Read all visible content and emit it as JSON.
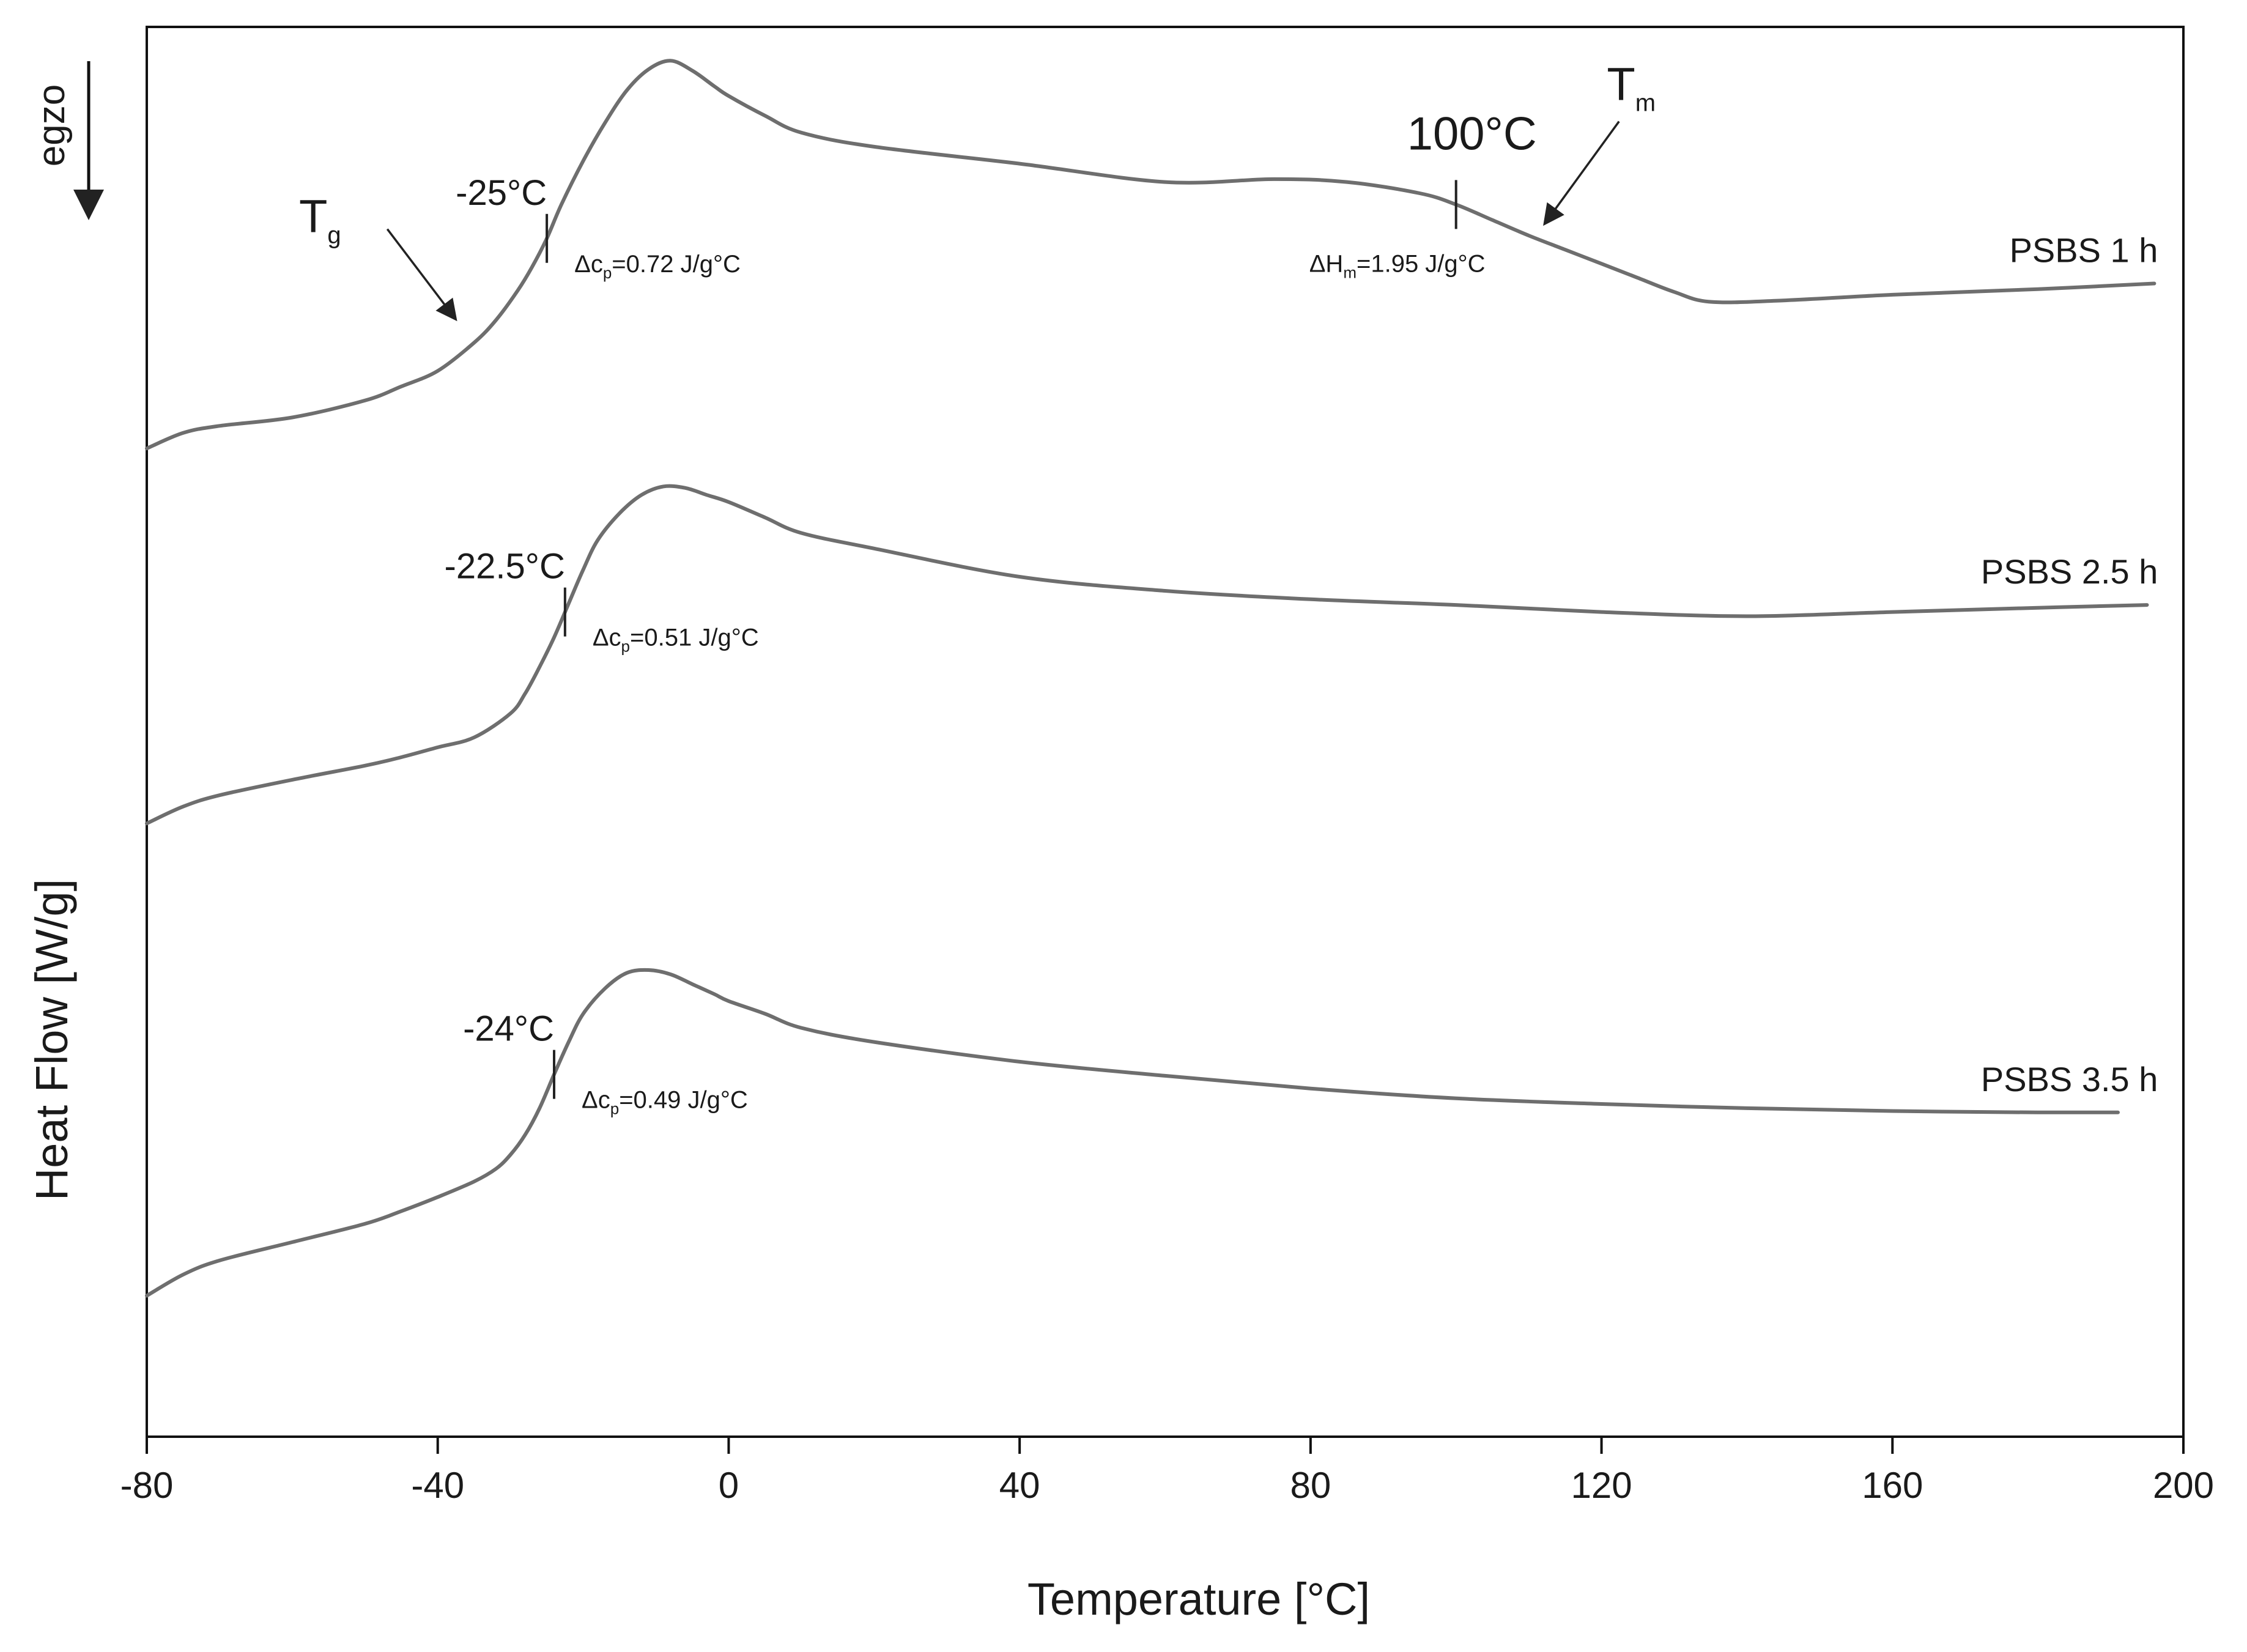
{
  "chart_data": {
    "type": "line",
    "title": "",
    "xlabel": "Temperature [°C]",
    "ylabel": "Heat Flow [W/g]",
    "direction_label": "egzo",
    "xlim": [
      -80,
      200
    ],
    "xticks": [
      "-80",
      "-40",
      "0",
      "40",
      "80",
      "120",
      "160",
      "200"
    ],
    "grid": false,
    "y_units": "relative heat flow (0 = bottom of frame, 1 = top of frame)",
    "series": [
      {
        "name": "PSBS 1 h",
        "x": [
          -80,
          -75,
          -70,
          -60,
          -50,
          -45,
          -40,
          -35,
          -32,
          -29,
          -27,
          -25,
          -23,
          -20,
          -17,
          -14,
          -11,
          -8,
          -5,
          -2,
          0,
          5,
          10,
          20,
          40,
          60,
          75,
          85,
          95,
          100,
          105,
          110,
          115,
          120,
          125,
          130,
          135,
          145,
          160,
          180,
          196
        ],
        "y": [
          0.701,
          0.712,
          0.717,
          0.723,
          0.735,
          0.745,
          0.756,
          0.776,
          0.792,
          0.813,
          0.83,
          0.85,
          0.874,
          0.905,
          0.932,
          0.955,
          0.97,
          0.976,
          0.969,
          0.958,
          0.951,
          0.937,
          0.925,
          0.915,
          0.903,
          0.89,
          0.892,
          0.89,
          0.882,
          0.874,
          0.863,
          0.852,
          0.842,
          0.832,
          0.822,
          0.812,
          0.805,
          0.806,
          0.81,
          0.814,
          0.818
        ]
      },
      {
        "name": "PSBS 2.5 h",
        "x": [
          -80,
          -75,
          -70,
          -60,
          -50,
          -45,
          -40,
          -35,
          -30,
          -28,
          -26,
          -24,
          -22,
          -20,
          -18,
          -15,
          -12,
          -9,
          -6,
          -3,
          0,
          5,
          10,
          20,
          40,
          60,
          80,
          100,
          120,
          140,
          160,
          180,
          195
        ],
        "y": [
          0.435,
          0.447,
          0.455,
          0.466,
          0.476,
          0.482,
          0.489,
          0.496,
          0.513,
          0.527,
          0.546,
          0.567,
          0.591,
          0.615,
          0.636,
          0.655,
          0.668,
          0.674,
          0.673,
          0.668,
          0.663,
          0.652,
          0.641,
          0.63,
          0.61,
          0.6,
          0.594,
          0.59,
          0.585,
          0.582,
          0.585,
          0.588,
          0.59
        ]
      },
      {
        "name": "PSBS 3.5 h",
        "x": [
          -80,
          -75,
          -70,
          -60,
          -50,
          -45,
          -40,
          -35,
          -32,
          -30,
          -28,
          -26,
          -24,
          -22,
          -20,
          -17,
          -14,
          -11,
          -8,
          -5,
          -2,
          0,
          5,
          10,
          20,
          40,
          60,
          80,
          100,
          120,
          140,
          160,
          180,
          191
        ],
        "y": [
          0.1,
          0.115,
          0.125,
          0.138,
          0.151,
          0.16,
          0.17,
          0.181,
          0.19,
          0.2,
          0.214,
          0.233,
          0.257,
          0.28,
          0.3,
          0.318,
          0.329,
          0.331,
          0.328,
          0.321,
          0.314,
          0.309,
          0.3,
          0.29,
          0.28,
          0.266,
          0.256,
          0.247,
          0.24,
          0.236,
          0.233,
          0.231,
          0.23,
          0.23
        ]
      }
    ],
    "annotations": [
      {
        "series": "PSBS 1 h",
        "x": -25,
        "temp_label": "-25°C",
        "prefix": "Δc",
        "sub": "p",
        "value": "=0.72 J/g°C"
      },
      {
        "series": "PSBS 1 h",
        "x": 100,
        "temp_label": "100°C",
        "prefix": "ΔH",
        "sub": "m",
        "value": "=1.95 J/g°C"
      },
      {
        "series": "PSBS 2.5 h",
        "x": -22.5,
        "temp_label": "-22.5°C",
        "prefix": "Δc",
        "sub": "p",
        "value": "=0.51 J/g°C"
      },
      {
        "series": "PSBS 3.5 h",
        "x": -24,
        "temp_label": "-24°C",
        "prefix": "Δc",
        "sub": "p",
        "value": "=0.49 J/g°C"
      }
    ],
    "transition_markers": [
      {
        "symbol": "T",
        "sub": "g",
        "x_at": -36
      },
      {
        "symbol": "T",
        "sub": "m",
        "x_at": 114
      }
    ]
  }
}
